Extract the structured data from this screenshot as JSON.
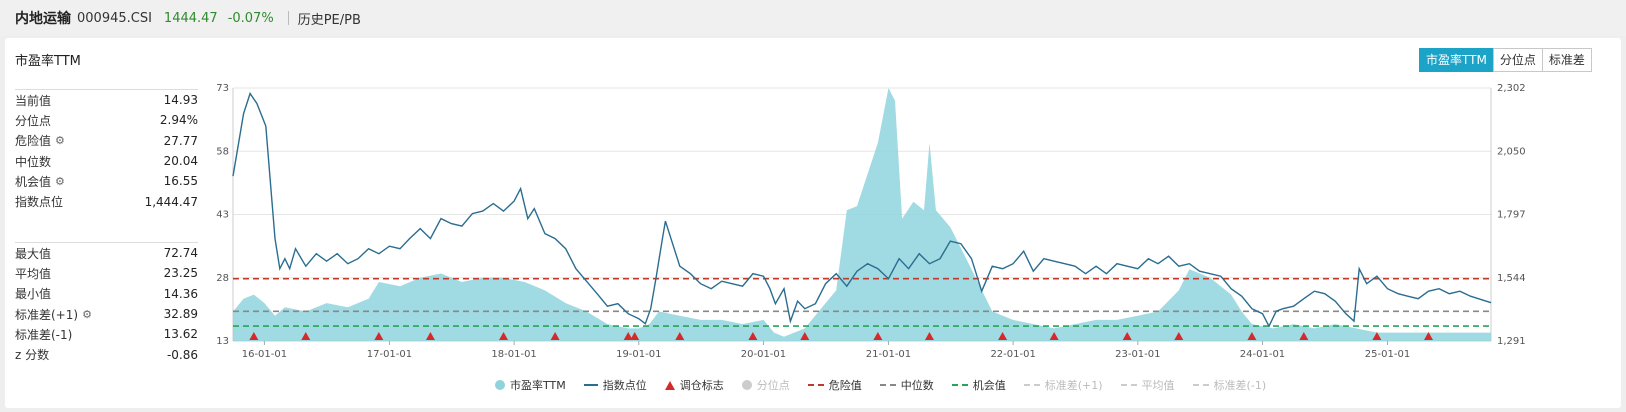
{
  "header": {
    "name": "内地运输",
    "code": "000945.CSI",
    "price": "1444.47",
    "change": "-0.07%",
    "link": "历史PE/PB"
  },
  "panel": {
    "title": "市盈率TTM",
    "tabs": [
      "市盈率TTM",
      "分位点",
      "标准差"
    ],
    "stats_top": [
      {
        "label": "当前值",
        "value": "14.93",
        "gear": false
      },
      {
        "label": "分位点",
        "value": "2.94%",
        "gear": false
      },
      {
        "label": "危险值",
        "value": "27.77",
        "gear": true
      },
      {
        "label": "中位数",
        "value": "20.04",
        "gear": false
      },
      {
        "label": "机会值",
        "value": "16.55",
        "gear": true
      },
      {
        "label": "指数点位",
        "value": "1,444.47",
        "gear": false
      }
    ],
    "stats_bottom": [
      {
        "label": "最大值",
        "value": "72.74",
        "gear": false
      },
      {
        "label": "平均值",
        "value": "23.25",
        "gear": false
      },
      {
        "label": "最小值",
        "value": "14.36",
        "gear": false
      },
      {
        "label": "标准差(+1)",
        "value": "32.89",
        "gear": true
      },
      {
        "label": "标准差(-1)",
        "value": "13.62",
        "gear": false
      },
      {
        "label": "z 分数",
        "value": "-0.86",
        "gear": false
      }
    ]
  },
  "colors": {
    "pe_fill": "#8fd3dd",
    "index_line": "#2a6d8f",
    "marker": "#d52a2a",
    "danger": "#c0392b",
    "median": "#888888",
    "opportunity": "#27a35a",
    "accent": "#1ca3c8"
  },
  "legend": [
    {
      "label": "市盈率TTM",
      "kind": "circle",
      "color": "#8fd3dd",
      "active": true
    },
    {
      "label": "指数点位",
      "kind": "line",
      "color": "#2a6d8f",
      "active": true
    },
    {
      "label": "调仓标志",
      "kind": "triangle",
      "color": "#d52a2a",
      "active": true
    },
    {
      "label": "分位点",
      "kind": "circle",
      "color": "#cccccc",
      "active": false
    },
    {
      "label": "危险值",
      "kind": "dash",
      "color": "#c0392b",
      "active": true
    },
    {
      "label": "中位数",
      "kind": "dash",
      "color": "#888888",
      "active": true
    },
    {
      "label": "机会值",
      "kind": "dash",
      "color": "#27a35a",
      "active": true
    },
    {
      "label": "标准差(+1)",
      "kind": "dash",
      "color": "#cccccc",
      "active": false
    },
    {
      "label": "平均值",
      "kind": "dash",
      "color": "#cccccc",
      "active": false
    },
    {
      "label": "标准差(-1)",
      "kind": "dash",
      "color": "#cccccc",
      "active": false
    }
  ],
  "chart_data": {
    "type": "area",
    "x_ticks": [
      "16-01-01",
      "17-01-01",
      "18-01-01",
      "19-01-01",
      "20-01-01",
      "21-01-01",
      "22-01-01",
      "23-01-01",
      "24-01-01",
      "25-01-01"
    ],
    "x_range": [
      "2015-10-01",
      "2025-10-31"
    ],
    "y_left": {
      "ticks": [
        13,
        28,
        43,
        58,
        73
      ],
      "range": [
        13,
        73
      ]
    },
    "y_right": {
      "ticks": [
        "1,291",
        "1,544",
        "1,797",
        "2,050",
        "2,302"
      ],
      "range": [
        1291,
        2302
      ]
    },
    "reference_lines": {
      "danger": 27.77,
      "median": 20.04,
      "opportunity": 16.55
    },
    "series": [
      {
        "name": "市盈率TTM",
        "axis": "left",
        "points": [
          [
            "2015-10-01",
            20
          ],
          [
            "2015-11-01",
            23
          ],
          [
            "2015-12-01",
            24
          ],
          [
            "2016-01-01",
            22
          ],
          [
            "2016-02-01",
            19
          ],
          [
            "2016-03-01",
            21
          ],
          [
            "2016-05-01",
            20
          ],
          [
            "2016-07-01",
            22
          ],
          [
            "2016-09-01",
            21
          ],
          [
            "2016-11-01",
            23
          ],
          [
            "2016-12-01",
            27
          ],
          [
            "2017-02-01",
            26
          ],
          [
            "2017-04-01",
            28
          ],
          [
            "2017-06-01",
            29
          ],
          [
            "2017-08-01",
            27
          ],
          [
            "2017-10-01",
            28
          ],
          [
            "2017-12-01",
            28
          ],
          [
            "2018-02-01",
            27
          ],
          [
            "2018-04-01",
            25
          ],
          [
            "2018-06-01",
            22
          ],
          [
            "2018-08-01",
            20
          ],
          [
            "2018-10-01",
            17
          ],
          [
            "2018-12-01",
            16
          ],
          [
            "2019-01-01",
            16
          ],
          [
            "2019-02-01",
            17
          ],
          [
            "2019-03-01",
            20
          ],
          [
            "2019-05-01",
            19
          ],
          [
            "2019-07-01",
            18
          ],
          [
            "2019-09-01",
            18
          ],
          [
            "2019-11-01",
            17
          ],
          [
            "2020-01-01",
            18
          ],
          [
            "2020-02-01",
            15
          ],
          [
            "2020-03-01",
            14
          ],
          [
            "2020-05-01",
            16
          ],
          [
            "2020-07-01",
            22
          ],
          [
            "2020-08-01",
            25
          ],
          [
            "2020-09-01",
            44
          ],
          [
            "2020-10-01",
            45
          ],
          [
            "2020-12-01",
            60
          ],
          [
            "2021-01-01",
            73
          ],
          [
            "2021-01-20",
            70
          ],
          [
            "2021-02-10",
            42
          ],
          [
            "2021-03-15",
            46
          ],
          [
            "2021-04-15",
            44
          ],
          [
            "2021-05-01",
            60
          ],
          [
            "2021-05-20",
            44
          ],
          [
            "2021-07-01",
            40
          ],
          [
            "2021-09-01",
            30
          ],
          [
            "2021-11-01",
            20
          ],
          [
            "2022-01-01",
            18
          ],
          [
            "2022-03-01",
            17
          ],
          [
            "2022-05-01",
            16
          ],
          [
            "2022-07-01",
            17
          ],
          [
            "2022-09-01",
            18
          ],
          [
            "2022-11-01",
            18
          ],
          [
            "2023-01-01",
            19
          ],
          [
            "2023-03-01",
            20
          ],
          [
            "2023-05-01",
            25
          ],
          [
            "2023-06-01",
            30
          ],
          [
            "2023-08-01",
            28
          ],
          [
            "2023-10-01",
            24
          ],
          [
            "2023-11-01",
            20
          ],
          [
            "2023-12-01",
            17
          ],
          [
            "2024-02-01",
            16
          ],
          [
            "2024-04-01",
            17
          ],
          [
            "2024-06-01",
            16
          ],
          [
            "2024-08-01",
            17
          ],
          [
            "2024-10-01",
            16
          ],
          [
            "2024-12-01",
            15
          ],
          [
            "2025-03-01",
            15
          ],
          [
            "2025-06-01",
            15
          ],
          [
            "2025-09-01",
            15
          ],
          [
            "2025-10-31",
            15
          ]
        ]
      },
      {
        "name": "指数点位",
        "axis": "right",
        "points": [
          [
            "2015-10-01",
            1950
          ],
          [
            "2015-11-01",
            2200
          ],
          [
            "2015-11-20",
            2280
          ],
          [
            "2015-12-10",
            2240
          ],
          [
            "2016-01-05",
            2150
          ],
          [
            "2016-01-20",
            1900
          ],
          [
            "2016-02-01",
            1700
          ],
          [
            "2016-02-15",
            1580
          ],
          [
            "2016-03-01",
            1620
          ],
          [
            "2016-03-15",
            1580
          ],
          [
            "2016-04-01",
            1660
          ],
          [
            "2016-05-01",
            1590
          ],
          [
            "2016-06-01",
            1640
          ],
          [
            "2016-07-01",
            1610
          ],
          [
            "2016-08-01",
            1640
          ],
          [
            "2016-09-01",
            1600
          ],
          [
            "2016-10-01",
            1620
          ],
          [
            "2016-11-01",
            1660
          ],
          [
            "2016-12-01",
            1640
          ],
          [
            "2017-01-01",
            1670
          ],
          [
            "2017-02-01",
            1660
          ],
          [
            "2017-03-01",
            1700
          ],
          [
            "2017-04-01",
            1740
          ],
          [
            "2017-05-01",
            1700
          ],
          [
            "2017-06-01",
            1780
          ],
          [
            "2017-07-01",
            1760
          ],
          [
            "2017-08-01",
            1750
          ],
          [
            "2017-09-01",
            1800
          ],
          [
            "2017-10-01",
            1810
          ],
          [
            "2017-11-01",
            1840
          ],
          [
            "2017-12-01",
            1810
          ],
          [
            "2018-01-01",
            1850
          ],
          [
            "2018-01-20",
            1900
          ],
          [
            "2018-02-10",
            1780
          ],
          [
            "2018-03-01",
            1820
          ],
          [
            "2018-04-01",
            1720
          ],
          [
            "2018-05-01",
            1700
          ],
          [
            "2018-06-01",
            1660
          ],
          [
            "2018-07-01",
            1580
          ],
          [
            "2018-08-01",
            1530
          ],
          [
            "2018-09-01",
            1480
          ],
          [
            "2018-10-01",
            1430
          ],
          [
            "2018-11-01",
            1440
          ],
          [
            "2018-12-01",
            1400
          ],
          [
            "2019-01-01",
            1380
          ],
          [
            "2019-01-20",
            1360
          ],
          [
            "2019-02-05",
            1420
          ],
          [
            "2019-02-20",
            1540
          ],
          [
            "2019-03-10",
            1690
          ],
          [
            "2019-03-20",
            1770
          ],
          [
            "2019-04-10",
            1680
          ],
          [
            "2019-05-01",
            1590
          ],
          [
            "2019-06-01",
            1560
          ],
          [
            "2019-07-01",
            1520
          ],
          [
            "2019-08-01",
            1500
          ],
          [
            "2019-09-01",
            1530
          ],
          [
            "2019-10-01",
            1520
          ],
          [
            "2019-11-01",
            1510
          ],
          [
            "2019-12-01",
            1560
          ],
          [
            "2020-01-01",
            1550
          ],
          [
            "2020-01-20",
            1500
          ],
          [
            "2020-02-05",
            1440
          ],
          [
            "2020-03-01",
            1500
          ],
          [
            "2020-03-20",
            1370
          ],
          [
            "2020-04-10",
            1450
          ],
          [
            "2020-05-01",
            1420
          ],
          [
            "2020-06-01",
            1440
          ],
          [
            "2020-07-01",
            1520
          ],
          [
            "2020-08-01",
            1560
          ],
          [
            "2020-09-01",
            1510
          ],
          [
            "2020-10-01",
            1570
          ],
          [
            "2020-11-01",
            1600
          ],
          [
            "2020-12-01",
            1580
          ],
          [
            "2021-01-01",
            1540
          ],
          [
            "2021-02-01",
            1620
          ],
          [
            "2021-03-01",
            1580
          ],
          [
            "2021-04-01",
            1640
          ],
          [
            "2021-05-01",
            1600
          ],
          [
            "2021-06-01",
            1620
          ],
          [
            "2021-07-01",
            1690
          ],
          [
            "2021-08-01",
            1680
          ],
          [
            "2021-09-01",
            1620
          ],
          [
            "2021-10-01",
            1490
          ],
          [
            "2021-11-01",
            1590
          ],
          [
            "2021-12-01",
            1580
          ],
          [
            "2022-01-01",
            1600
          ],
          [
            "2022-02-01",
            1650
          ],
          [
            "2022-03-01",
            1570
          ],
          [
            "2022-04-01",
            1620
          ],
          [
            "2022-05-01",
            1610
          ],
          [
            "2022-06-01",
            1600
          ],
          [
            "2022-07-01",
            1590
          ],
          [
            "2022-08-01",
            1560
          ],
          [
            "2022-09-01",
            1590
          ],
          [
            "2022-10-01",
            1560
          ],
          [
            "2022-11-01",
            1600
          ],
          [
            "2022-12-01",
            1590
          ],
          [
            "2023-01-01",
            1580
          ],
          [
            "2023-02-01",
            1620
          ],
          [
            "2023-03-01",
            1600
          ],
          [
            "2023-04-01",
            1630
          ],
          [
            "2023-05-01",
            1590
          ],
          [
            "2023-06-01",
            1600
          ],
          [
            "2023-07-01",
            1570
          ],
          [
            "2023-08-01",
            1560
          ],
          [
            "2023-09-01",
            1550
          ],
          [
            "2023-10-01",
            1500
          ],
          [
            "2023-11-01",
            1470
          ],
          [
            "2023-12-01",
            1420
          ],
          [
            "2024-01-01",
            1400
          ],
          [
            "2024-01-20",
            1350
          ],
          [
            "2024-02-10",
            1410
          ],
          [
            "2024-03-01",
            1420
          ],
          [
            "2024-04-01",
            1430
          ],
          [
            "2024-05-01",
            1460
          ],
          [
            "2024-06-01",
            1490
          ],
          [
            "2024-07-01",
            1480
          ],
          [
            "2024-08-01",
            1450
          ],
          [
            "2024-09-01",
            1400
          ],
          [
            "2024-09-25",
            1370
          ],
          [
            "2024-10-10",
            1580
          ],
          [
            "2024-11-01",
            1520
          ],
          [
            "2024-12-01",
            1550
          ],
          [
            "2025-01-01",
            1500
          ],
          [
            "2025-02-01",
            1480
          ],
          [
            "2025-03-01",
            1470
          ],
          [
            "2025-04-01",
            1460
          ],
          [
            "2025-05-01",
            1490
          ],
          [
            "2025-06-01",
            1500
          ],
          [
            "2025-07-01",
            1480
          ],
          [
            "2025-08-01",
            1490
          ],
          [
            "2025-09-01",
            1470
          ],
          [
            "2025-10-31",
            1444
          ]
        ]
      }
    ],
    "markers": [
      "2015-12-01",
      "2016-05-01",
      "2016-12-01",
      "2017-05-01",
      "2017-12-01",
      "2018-05-01",
      "2018-12-01",
      "2018-12-20",
      "2019-05-01",
      "2019-12-01",
      "2020-05-01",
      "2020-12-01",
      "2021-05-01",
      "2021-12-01",
      "2022-05-01",
      "2022-12-01",
      "2023-05-01",
      "2023-12-01",
      "2024-05-01",
      "2024-12-01",
      "2025-05-01"
    ]
  }
}
